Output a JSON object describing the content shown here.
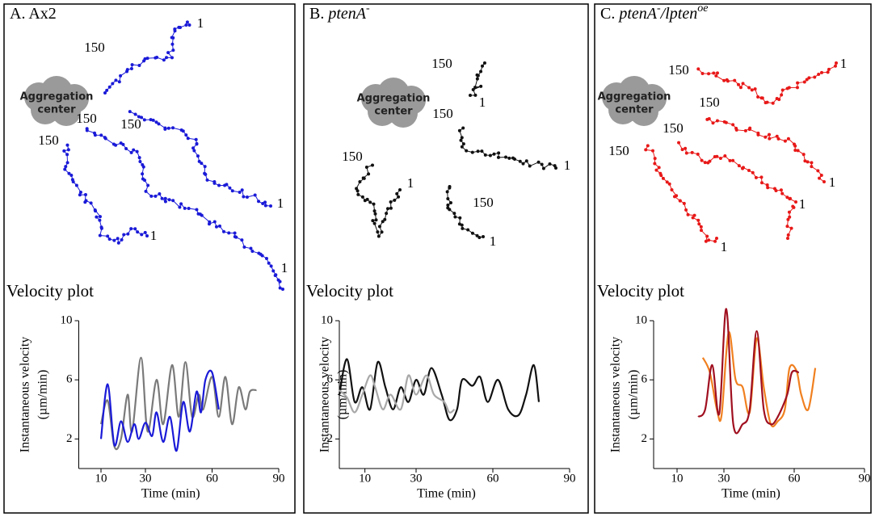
{
  "panels": [
    {
      "label": [
        {
          "text": "A. Ax2",
          "style": "normal"
        }
      ],
      "aggregation_center": [
        "Aggregation",
        "center"
      ],
      "track_labels": [
        "1",
        "150",
        "150",
        "150",
        "150",
        "1",
        "1",
        "1"
      ]
    },
    {
      "label": [
        {
          "text": "B. ",
          "style": "normal"
        },
        {
          "text": "ptenA",
          "style": "italic"
        },
        {
          "text": "-",
          "style": "sup"
        }
      ],
      "aggregation_center": [
        "Aggregation",
        "center"
      ],
      "track_labels": [
        "150",
        "1",
        "150",
        "1",
        "150",
        "1",
        "150",
        "1"
      ]
    },
    {
      "label": [
        {
          "text": "C. ",
          "style": "normal"
        },
        {
          "text": "ptenA",
          "style": "italic"
        },
        {
          "text": "-",
          "style": "sup"
        },
        {
          "text": "/lpten",
          "style": "italic"
        },
        {
          "text": "oe",
          "style": "sup-italic"
        }
      ],
      "aggregation_center": [
        "Aggregation",
        "center"
      ],
      "track_labels": [
        "150",
        "1",
        "150",
        "150",
        "150",
        "1",
        "1",
        "1"
      ]
    }
  ],
  "chart_data": [
    {
      "type": "line",
      "title": "Velocity plot",
      "xlabel": "Time (min)",
      "ylabel": [
        "Instantaneous velocity",
        "(µm/min)"
      ],
      "xlim": [
        0,
        90
      ],
      "xticks": [
        10,
        30,
        60,
        90
      ],
      "ylim": [
        0,
        10
      ],
      "yticks": [
        2,
        6,
        10
      ],
      "series": [
        {
          "color": "#7a7a7a",
          "x": [
            10,
            13,
            16,
            19,
            22,
            24,
            28,
            31,
            35,
            38,
            42,
            45,
            48,
            51,
            54,
            56,
            60,
            63,
            66,
            69,
            72,
            75,
            77,
            80
          ],
          "values": [
            3.0,
            4.6,
            1.5,
            2.0,
            5.0,
            2.5,
            7.5,
            2.5,
            6.0,
            3.0,
            7.0,
            3.5,
            7.2,
            3.5,
            5.0,
            4.0,
            6.2,
            3.5,
            6.2,
            3.0,
            5.5,
            4.0,
            5.2,
            5.3
          ]
        },
        {
          "color": "#1a1ad8",
          "x": [
            10,
            13,
            16,
            19,
            22,
            25,
            27,
            30,
            33,
            35,
            38,
            41,
            44,
            47,
            50,
            53,
            55,
            57,
            60,
            63
          ],
          "values": [
            2.0,
            5.7,
            1.6,
            3.2,
            1.8,
            3.0,
            2.0,
            3.1,
            2.2,
            3.8,
            1.8,
            3.5,
            1.2,
            4.5,
            2.5,
            5.2,
            3.8,
            6.0,
            6.5,
            4.0
          ]
        }
      ]
    },
    {
      "type": "line",
      "title": "Velocity plot",
      "xlabel": "Time (min)",
      "ylabel": [
        "Instantaneous velocity",
        "(µm/min)"
      ],
      "xlim": [
        0,
        90
      ],
      "xticks": [
        10,
        30,
        60,
        90
      ],
      "ylim": [
        0,
        10
      ],
      "yticks": [
        2,
        6,
        10
      ],
      "series": [
        {
          "color": "#111111",
          "x": [
            0,
            3,
            6,
            9,
            12,
            15,
            18,
            21,
            24,
            27,
            30,
            33,
            36,
            40,
            43,
            46,
            48,
            52,
            55,
            58,
            62,
            66,
            70,
            73,
            76,
            78
          ],
          "values": [
            5.0,
            7.4,
            4.5,
            5.5,
            4.0,
            7.2,
            5.5,
            4.0,
            5.5,
            4.5,
            6.0,
            5.0,
            6.8,
            5.0,
            3.3,
            4.0,
            6.0,
            5.6,
            6.2,
            4.5,
            6.0,
            4.0,
            3.6,
            5.0,
            7.0,
            4.5
          ]
        },
        {
          "color": "#a8a8a8",
          "x": [
            0,
            3,
            6,
            9,
            12,
            14,
            17,
            20,
            24,
            27,
            30,
            34,
            37,
            41,
            43,
            45
          ],
          "values": [
            5.3,
            4.8,
            3.8,
            5.0,
            6.3,
            5.5,
            4.0,
            5.0,
            4.0,
            6.3,
            5.0,
            6.3,
            5.0,
            4.5,
            3.8,
            4.0
          ]
        }
      ]
    },
    {
      "type": "line",
      "title": "Velocity plot",
      "xlabel": "Time (min)",
      "ylabel": [
        "Instantaneous velocity",
        "(µm/min)"
      ],
      "xlim": [
        0,
        90
      ],
      "xticks": [
        10,
        30,
        60,
        90
      ],
      "ylim": [
        0,
        10
      ],
      "yticks": [
        2,
        6,
        10
      ],
      "series": [
        {
          "color": "#f08020",
          "x": [
            21,
            24,
            27,
            29,
            32,
            35,
            38,
            41,
            44,
            47,
            50,
            53,
            56,
            58,
            61,
            63,
            66,
            69
          ],
          "values": [
            7.5,
            6.5,
            4.0,
            3.6,
            9.2,
            6.0,
            5.5,
            3.8,
            8.8,
            5.5,
            3.0,
            3.2,
            4.0,
            6.8,
            6.6,
            5.0,
            4.0,
            6.8
          ]
        },
        {
          "color": "#a01020",
          "x": [
            19,
            22,
            25,
            28,
            31,
            34,
            38,
            41,
            44,
            47,
            50,
            53,
            57,
            59,
            62
          ],
          "values": [
            3.5,
            4.0,
            7.0,
            3.7,
            10.8,
            3.0,
            3.0,
            4.0,
            9.3,
            4.0,
            3.0,
            3.5,
            5.0,
            6.5,
            6.5
          ]
        }
      ]
    }
  ]
}
